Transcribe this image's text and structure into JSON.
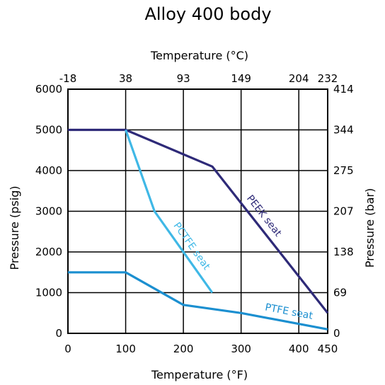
{
  "chart_data": {
    "type": "line",
    "title": "Alloy 400 body",
    "xlabel_bottom": "Temperature (°F)",
    "xlabel_top": "Temperature (°C)",
    "ylabel_left": "Pressure (psig)",
    "ylabel_right": "Pressure (bar)",
    "x_ticks_bottom": [
      "0",
      "100",
      "200",
      "300",
      "400",
      "450"
    ],
    "x_ticks_top": [
      "-18",
      "38",
      "93",
      "149",
      "204",
      "232"
    ],
    "y_ticks_left": [
      "0",
      "1000",
      "2000",
      "3000",
      "4000",
      "5000",
      "6000"
    ],
    "y_ticks_right": [
      "0",
      "69",
      "138",
      "207",
      "275",
      "344",
      "414"
    ],
    "xlim": [
      0,
      450
    ],
    "ylim": [
      0,
      6000
    ],
    "grid": true,
    "series": [
      {
        "name": "PEEK seat",
        "color": "#2e2a78",
        "x": [
          0,
          100,
          250,
          450
        ],
        "y": [
          5000,
          5000,
          4100,
          500
        ]
      },
      {
        "name": "PCTFE seat",
        "color": "#3fb8e6",
        "x": [
          100,
          150,
          250
        ],
        "y": [
          5000,
          3000,
          1000
        ]
      },
      {
        "name": "PTFE seat",
        "color": "#1b8fd0",
        "x": [
          0,
          100,
          200,
          300,
          450
        ],
        "y": [
          1500,
          1500,
          700,
          500,
          100
        ]
      }
    ]
  }
}
